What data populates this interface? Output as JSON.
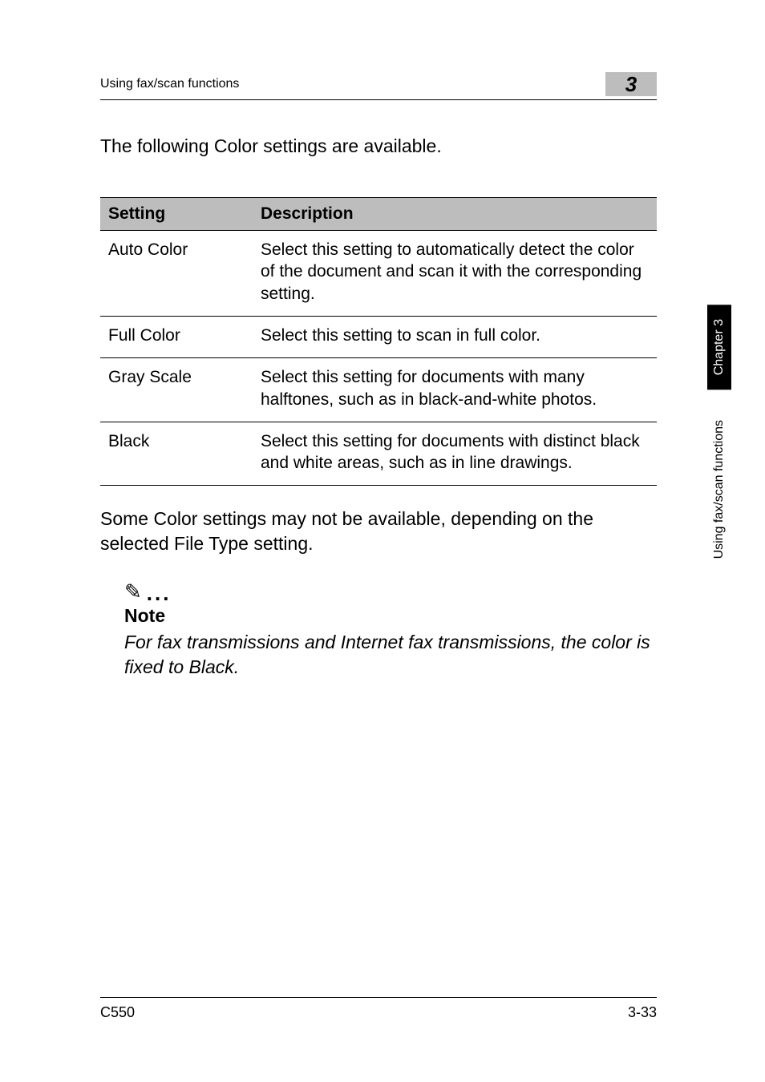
{
  "header": {
    "section": "Using fax/scan functions",
    "chapter_number": "3"
  },
  "intro": "The following Color settings are available.",
  "table": {
    "columns": [
      "Setting",
      "Description"
    ],
    "rows": [
      [
        "Auto Color",
        "Select this setting to automatically detect the color of the document and scan it with the corresponding setting."
      ],
      [
        "Full Color",
        "Select this setting to scan in full color."
      ],
      [
        "Gray Scale",
        "Select this setting for documents with many halftones, such as in black-and-white photos."
      ],
      [
        "Black",
        "Select this setting for documents with distinct black and white areas, such as in line drawings."
      ]
    ],
    "header_bg": "#bdbdbd",
    "border_color": "#000000",
    "cell_font_size": 21
  },
  "after_table": "Some Color settings may not be available, depending on the selected File Type setting.",
  "note": {
    "icon": "✎",
    "title": "Note",
    "body": "For fax transmissions and Internet fax transmissions, the color is fixed to Black."
  },
  "side_tabs": {
    "chapter": "Chapter 3",
    "functions": "Using fax/scan functions"
  },
  "footer": {
    "left": "C550",
    "right": "3-33"
  }
}
